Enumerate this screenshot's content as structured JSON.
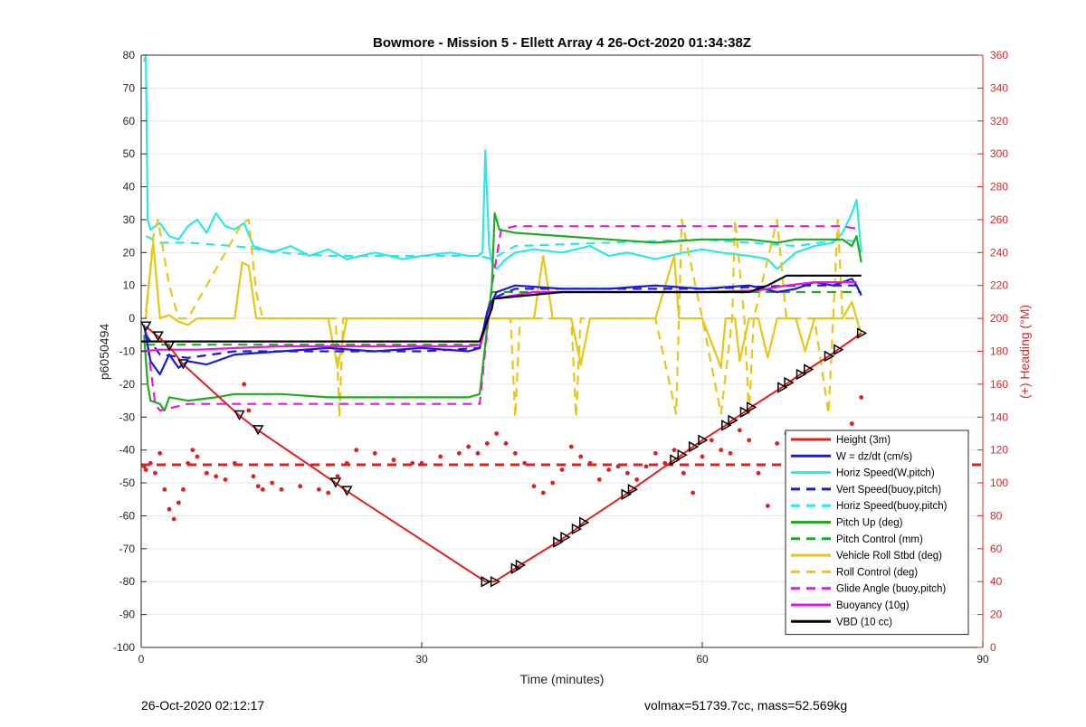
{
  "chart_data": {
    "type": "line",
    "title": "Bowmore - Mission 5 - Ellett Array 4 26-Oct-2020 01:34:38Z",
    "xlabel": "Time (minutes)",
    "ylabel": "p6050494",
    "y2label": "(+) Heading (°M)",
    "xlim": [
      0,
      90
    ],
    "ylim": [
      -100,
      80
    ],
    "y2lim": [
      0,
      360
    ],
    "xticks": [
      "0",
      "30",
      "60",
      "90"
    ],
    "yticks": [
      "80",
      "70",
      "60",
      "50",
      "40",
      "30",
      "20",
      "10",
      "0",
      "-10",
      "-20",
      "-30",
      "-40",
      "-50",
      "-60",
      "-70",
      "-80",
      "-90",
      "-100"
    ],
    "y2ticks": [
      "360",
      "340",
      "320",
      "300",
      "280",
      "260",
      "240",
      "220",
      "200",
      "180",
      "160",
      "140",
      "120",
      "100",
      "80",
      "60",
      "40",
      "20",
      "0"
    ],
    "grid": true,
    "legend_position": "bottom-right",
    "legend": [
      {
        "name": "Height (3m)",
        "color": "#e02020",
        "style": "solid"
      },
      {
        "name": "W = dz/dt (cm/s)",
        "color": "#1a1ad6",
        "style": "solid"
      },
      {
        "name": "Horiz Speed(W,pitch)",
        "color": "#2ee6e6",
        "style": "solid"
      },
      {
        "name": "Vert Speed(buoy,pitch)",
        "color": "#1a1ad6",
        "style": "dashed"
      },
      {
        "name": "Horiz Speed(buoy,pitch)",
        "color": "#2ee6e6",
        "style": "dashed"
      },
      {
        "name": "Pitch Up (deg)",
        "color": "#22aa22",
        "style": "solid"
      },
      {
        "name": "Pitch Control (mm)",
        "color": "#22aa22",
        "style": "dashed"
      },
      {
        "name": "Vehicle Roll Stbd (deg)",
        "color": "#e6c619",
        "style": "solid"
      },
      {
        "name": "Roll Control (deg)",
        "color": "#e6c619",
        "style": "dashed"
      },
      {
        "name": "Glide Angle (buoy,pitch)",
        "color": "#e617e6",
        "style": "dashed"
      },
      {
        "name": "Buoyancy (10g)",
        "color": "#e617e6",
        "style": "solid"
      },
      {
        "name": "VBD (10 cc)",
        "color": "#000000",
        "style": "solid"
      }
    ],
    "series": [
      {
        "name": "Height (3m)",
        "x": [
          0.5,
          1.8,
          3.0,
          4.5,
          10.5,
          12.5,
          20.8,
          22.0,
          36.8,
          37.8,
          40.0,
          40.5,
          44.5,
          45.3,
          46.5,
          47.3,
          51.8,
          52.5,
          57.0,
          57.8,
          59.0,
          60.0,
          62.5,
          63.2,
          64.5,
          65.2,
          68.5,
          69.2,
          70.5,
          71.3,
          73.5,
          74.5,
          77.0
        ],
        "y": [
          -2.5,
          -5.5,
          -8.5,
          -14.0,
          -29.5,
          -34.0,
          -50.0,
          -52.5,
          -80.0,
          -80.0,
          -76.0,
          -75.0,
          -68.0,
          -66.5,
          -64.0,
          -62.0,
          -53.5,
          -52.0,
          -43.0,
          -41.5,
          -39.0,
          -37.0,
          -32.5,
          -31.0,
          -28.5,
          -27.0,
          -21.0,
          -19.5,
          -17.0,
          -15.5,
          -11.5,
          -9.5,
          -4.5
        ]
      },
      {
        "name": "VBD (10 cc)",
        "x": [
          0,
          0.5,
          36.2,
          37.5,
          37.7,
          45.0,
          65.0,
          67.0,
          69.0,
          73.0,
          77.0
        ],
        "y": [
          -7,
          -7,
          -7,
          3,
          6,
          8,
          8,
          10,
          13,
          13,
          13
        ]
      },
      {
        "name": "Buoyancy (10g)",
        "x": [
          0,
          2,
          6,
          10,
          15,
          35,
          36.3,
          37.7,
          42,
          60,
          66,
          69,
          72,
          76.5
        ],
        "y": [
          -10,
          -9.5,
          -9.5,
          -9,
          -8.5,
          -8.5,
          -8,
          6,
          8,
          8,
          8.5,
          10,
          11,
          11
        ]
      },
      {
        "name": "W = dz/dt (cm/s)",
        "x": [
          0.3,
          1,
          2,
          3,
          4,
          5,
          7,
          10,
          15,
          20,
          25,
          30,
          35,
          36.2,
          37,
          38,
          40,
          45,
          50,
          55,
          60,
          65,
          68,
          70,
          72,
          74,
          76,
          76.5,
          77
        ],
        "y": [
          -2,
          -13,
          -17,
          -11,
          -15,
          -13,
          -14,
          -11,
          -10,
          -9,
          -10,
          -9,
          -10,
          -9,
          2,
          8,
          10,
          9,
          9,
          10,
          9,
          10,
          8,
          9,
          11,
          10,
          12,
          10,
          7
        ]
      },
      {
        "name": "Vert Speed(buoy,pitch)",
        "x": [
          0.5,
          2,
          5,
          10,
          20,
          30,
          36.2,
          37.5,
          40,
          50,
          60,
          70,
          77
        ],
        "y": [
          -5,
          -11,
          -12,
          -10,
          -10,
          -10,
          -9,
          6,
          9,
          9,
          9,
          10,
          10
        ]
      },
      {
        "name": "Horiz Speed(W,pitch)",
        "x": [
          0.3,
          0.5,
          0.7,
          1,
          2,
          3,
          4,
          5,
          6,
          7,
          8,
          9,
          10,
          11,
          12,
          14,
          16,
          18,
          20,
          22,
          25,
          28,
          30,
          33,
          35,
          36,
          36.5,
          36.8,
          37.2,
          37.5,
          38,
          39,
          40,
          42,
          45,
          48,
          50,
          52,
          55,
          58,
          60,
          62,
          65,
          67,
          68,
          70,
          72,
          74,
          75,
          76,
          76.5,
          77
        ],
        "y": [
          78,
          80,
          30,
          27,
          29,
          25,
          24,
          28,
          30,
          26,
          32,
          28,
          27,
          29,
          22,
          20,
          22,
          19,
          21,
          18,
          20,
          18,
          19,
          20,
          19,
          19,
          20,
          51,
          22,
          17,
          15,
          18,
          20,
          21,
          20,
          22,
          19,
          20,
          18,
          20,
          21,
          20,
          19,
          18,
          15,
          20,
          22,
          23,
          26,
          32,
          36,
          20
        ]
      },
      {
        "name": "Horiz Speed(buoy,pitch)",
        "x": [
          0.5,
          2,
          5,
          10,
          15,
          20,
          30,
          36.2,
          37.5,
          40,
          50,
          60,
          65,
          70,
          75,
          77
        ],
        "y": [
          25,
          23,
          23,
          22,
          20,
          19,
          19,
          19,
          18,
          22,
          23,
          24,
          23,
          22,
          24,
          23
        ]
      },
      {
        "name": "Pitch Up (deg)",
        "x": [
          0.3,
          0.7,
          1,
          2,
          2.5,
          3,
          5,
          8,
          10,
          15,
          20,
          25,
          30,
          35,
          36.2,
          37.5,
          37.8,
          38.3,
          40,
          45,
          50,
          55,
          60,
          65,
          68,
          70,
          75,
          76,
          76.5,
          77
        ],
        "y": [
          -5,
          -20,
          -25,
          -26,
          -28,
          -24,
          -25,
          -24,
          -23,
          -23,
          -24,
          -24,
          -24,
          -24,
          -23,
          10,
          32,
          27,
          26,
          25,
          24,
          23,
          24,
          24,
          23,
          24,
          24,
          22,
          25,
          17
        ]
      },
      {
        "name": "Pitch Control (mm)",
        "x": [
          0.5,
          5,
          10,
          20,
          30,
          36.2,
          37.5,
          40,
          50,
          60,
          70,
          77
        ],
        "y": [
          -8,
          -8,
          -8,
          -8,
          -8,
          -8,
          8,
          8,
          8,
          8,
          8,
          8
        ]
      },
      {
        "name": "Vehicle Roll Stbd (deg)",
        "x": [
          0.5,
          1.3,
          2,
          3,
          4,
          5,
          6,
          8,
          10,
          10.8,
          11.5,
          12.3,
          13,
          15,
          20,
          21,
          22,
          25,
          30,
          35,
          36.2,
          38,
          40,
          42,
          43,
          44,
          46,
          47,
          48,
          50,
          52,
          55,
          57,
          57.5,
          59,
          60,
          62,
          62.5,
          63.5,
          64,
          65,
          66,
          67,
          68,
          69,
          70,
          71,
          72,
          73,
          75,
          76,
          77
        ],
        "y": [
          2,
          23,
          0,
          1,
          -1,
          -2,
          0,
          0,
          0,
          17,
          16,
          0,
          0,
          0,
          0,
          -15,
          0,
          0,
          0,
          0,
          0,
          0,
          0,
          0,
          19,
          0,
          0,
          -14,
          0,
          0,
          0,
          0,
          19,
          0,
          0,
          0,
          -15,
          0,
          0,
          -13,
          0,
          0,
          -12,
          0,
          0,
          0,
          -10,
          0,
          0,
          0,
          5,
          -5
        ]
      },
      {
        "name": "Roll Control (deg)",
        "x": [
          0.5,
          1.3,
          1.8,
          3,
          4,
          5,
          10.8,
          11.5,
          12.3,
          13,
          20.8,
          21.2,
          21.6,
          30,
          37.5,
          39.5,
          40,
          40.5,
          41,
          46,
          46.5,
          47,
          55,
          57.2,
          57.5,
          57.8,
          60,
          62,
          63.2,
          63.5,
          64.5,
          65,
          65.5,
          68,
          69,
          72,
          73.5,
          74,
          74.5,
          75,
          76,
          77
        ],
        "y": [
          0,
          25,
          30,
          10,
          0,
          0,
          29,
          30,
          8,
          0,
          0,
          -30,
          0,
          0,
          0,
          0,
          -30,
          0,
          0,
          0,
          -30,
          0,
          0,
          -29,
          0,
          30,
          0,
          -29,
          0,
          30,
          0,
          -29,
          0,
          30,
          0,
          0,
          -29,
          0,
          30,
          0,
          0,
          0
        ]
      },
      {
        "name": "Glide Angle (buoy,pitch)",
        "x": [
          0.5,
          1.5,
          2,
          5,
          10,
          20,
          30,
          36.2,
          37.5,
          38.5,
          40,
          50,
          60,
          70,
          75,
          77
        ],
        "y": [
          -4,
          -26,
          -28,
          -26,
          -26,
          -26,
          -26,
          -26,
          10,
          27,
          28,
          28,
          28,
          28,
          28,
          27
        ]
      }
    ],
    "heading_series": {
      "name": "Heading",
      "axis": "right",
      "x": [
        0.3,
        0.5,
        1,
        1.5,
        2,
        2.5,
        3,
        3.5,
        4,
        4.5,
        5,
        5.5,
        6,
        7,
        8,
        9,
        10,
        11,
        11.5,
        12,
        12.5,
        13,
        14,
        15,
        17,
        19,
        20,
        21,
        22,
        23,
        25,
        27,
        29,
        30,
        32,
        34,
        35,
        36,
        37,
        38,
        39,
        40,
        41,
        42,
        43,
        44,
        45,
        46,
        47,
        48,
        49,
        50,
        51,
        52,
        53,
        54,
        55,
        56,
        57,
        58,
        59,
        60,
        61,
        62,
        63,
        64,
        65,
        66,
        67,
        68,
        69,
        70,
        71,
        72,
        73,
        74,
        75,
        76,
        77
      ],
      "y": [
        110,
        108,
        112,
        106,
        118,
        96,
        84,
        78,
        88,
        96,
        112,
        120,
        116,
        106,
        104,
        102,
        112,
        160,
        144,
        104,
        98,
        96,
        100,
        96,
        98,
        96,
        94,
        104,
        112,
        120,
        118,
        114,
        112,
        112,
        116,
        118,
        122,
        118,
        124,
        130,
        124,
        118,
        112,
        98,
        94,
        100,
        108,
        122,
        116,
        112,
        102,
        108,
        110,
        106,
        102,
        110,
        118,
        112,
        120,
        106,
        94,
        116,
        126,
        120,
        118,
        132,
        126,
        106,
        86,
        124,
        130,
        112,
        100,
        96,
        118,
        108,
        124,
        136,
        152
      ]
    },
    "reference_line": {
      "axis": "right",
      "value": 111,
      "style": "dashed",
      "color": "#e02020"
    }
  },
  "footer": {
    "date": "26-Oct-2020 02:12:17",
    "stats": "volmax=51739.7cc, mass=52.569kg"
  }
}
